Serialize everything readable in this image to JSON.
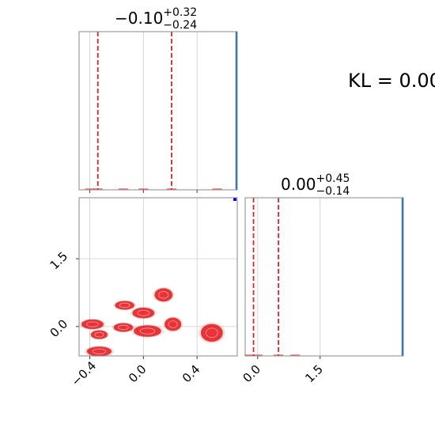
{
  "chart_data": {
    "type": "corner",
    "annotation": "KL = 0.00",
    "params": [
      {
        "title": {
          "base": "−0.10",
          "sup": "+0.32",
          "sub": "−0.24"
        },
        "xlim": [
          -0.48,
          0.7
        ],
        "ticks": [
          -0.4,
          0.0,
          0.4
        ],
        "tick_labels": [
          "−0.4",
          "0.0",
          "0.4"
        ],
        "quantile_lines": [
          -0.34,
          0.21
        ],
        "truth_line": 0.7,
        "hist_points": [
          [
            -0.4,
            0.01
          ],
          [
            -0.34,
            0.02
          ],
          [
            -0.15,
            0.01
          ],
          [
            0.0,
            0.008
          ],
          [
            0.21,
            0.01
          ],
          [
            0.55,
            0.005
          ]
        ]
      },
      {
        "title": {
          "base": "0.00",
          "sup": "+0.45",
          "sub": "−0.14"
        },
        "xlim": [
          -0.3,
          3.5
        ],
        "ticks": [
          0.0,
          1.5
        ],
        "tick_labels": [
          "0.0",
          "1.5"
        ],
        "quantile_lines": [
          -0.1,
          0.5
        ],
        "truth_line": 3.5,
        "hist_points": [
          [
            -0.2,
            0.005
          ],
          [
            0.0,
            0.01
          ],
          [
            0.5,
            0.006
          ],
          [
            0.9,
            0.003
          ]
        ]
      }
    ],
    "joint": {
      "xlim": [
        -0.48,
        0.7
      ],
      "ylim": [
        -0.65,
        2.85
      ],
      "xticks": [
        -0.4,
        0.0,
        0.4
      ],
      "yticks": [
        0.0,
        1.5
      ],
      "ytick_labels": [
        "0.0",
        "1.5"
      ],
      "truth_point": [
        0.7,
        2.85
      ],
      "blobs": [
        {
          "x": 0.15,
          "y": 0.7,
          "rx": 0.065,
          "ry": 0.14
        },
        {
          "x": -0.14,
          "y": 0.47,
          "rx": 0.07,
          "ry": 0.09
        },
        {
          "x": 0.0,
          "y": 0.3,
          "rx": 0.08,
          "ry": 0.11
        },
        {
          "x": -0.38,
          "y": 0.05,
          "rx": 0.08,
          "ry": 0.1
        },
        {
          "x": -0.15,
          "y": -0.02,
          "rx": 0.07,
          "ry": 0.09
        },
        {
          "x": 0.22,
          "y": 0.05,
          "rx": 0.06,
          "ry": 0.14
        },
        {
          "x": 0.03,
          "y": -0.1,
          "rx": 0.1,
          "ry": 0.12
        },
        {
          "x": -0.33,
          "y": -0.18,
          "rx": 0.06,
          "ry": 0.09
        },
        {
          "x": 0.51,
          "y": -0.14,
          "rx": 0.08,
          "ry": 0.19
        },
        {
          "x": -0.33,
          "y": -0.55,
          "rx": 0.09,
          "ry": 0.1
        }
      ]
    },
    "colors": {
      "posterior": "#e8141b",
      "quantile": "#d62728",
      "truth": "#1f77b4",
      "truth_point": "#0000ff",
      "grid": "#cccccc"
    }
  }
}
